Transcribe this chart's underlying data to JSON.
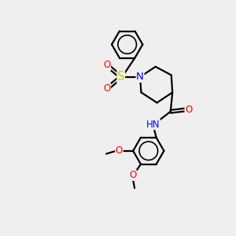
{
  "bg_color": "#efefef",
  "atom_colors": {
    "N": "#0000ff",
    "O": "#ff0000",
    "S": "#cccc00",
    "C": "#000000"
  },
  "bond_lw": 1.6,
  "font_size": 8.5,
  "figsize": [
    3.0,
    3.0
  ],
  "dpi": 100
}
